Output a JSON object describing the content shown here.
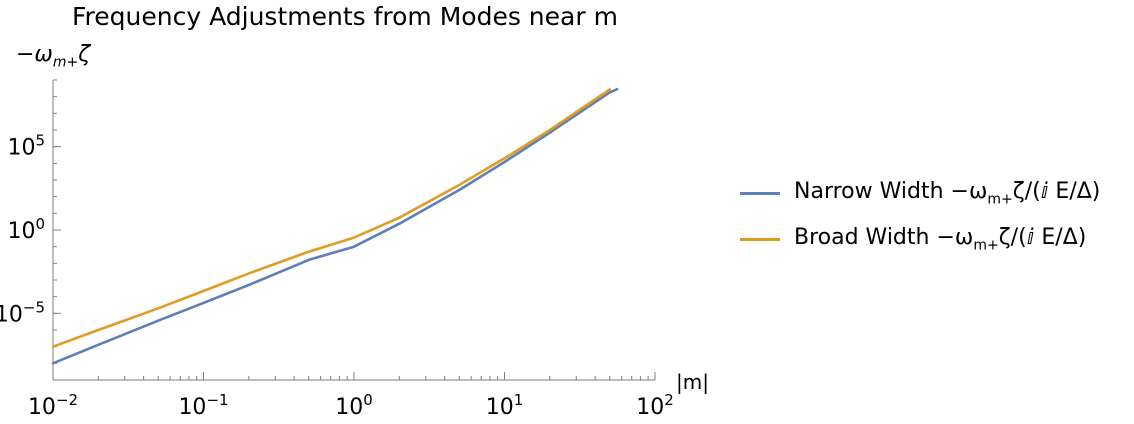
{
  "chart_data": {
    "type": "line",
    "title": "Frequency Adjustments from Modes near m",
    "xlabel": "|m|",
    "ylabel": "−ω_{m+}ζ",
    "ylabel_main": "−ω",
    "ylabel_sub": "m+",
    "ylabel_tail": "ζ",
    "x_scale": "log",
    "y_scale": "log",
    "xlim": [
      0.01,
      100
    ],
    "ylim": [
      1e-09,
      1000000000.0
    ],
    "x_ticks": [
      {
        "base": "10",
        "exp": "−2",
        "value": 0.01
      },
      {
        "base": "10",
        "exp": "−1",
        "value": 0.1
      },
      {
        "base": "10",
        "exp": "0",
        "value": 1
      },
      {
        "base": "10",
        "exp": "1",
        "value": 10
      },
      {
        "base": "10",
        "exp": "2",
        "value": 100
      }
    ],
    "y_ticks": [
      {
        "base": "10",
        "exp": "5",
        "value": 100000
      },
      {
        "base": "10",
        "exp": "0",
        "value": 1
      },
      {
        "base": "10",
        "exp": "−5",
        "value": 1e-05
      }
    ],
    "grid": false,
    "legend_position": "right",
    "series": [
      {
        "name": "Narrow Width −ω_{m+}ζ/(ⅈ E/Δ)",
        "legend_main": "Narrow Width −ω",
        "legend_sub": "m+",
        "legend_tail": "ζ/(ⅈ E/Δ)",
        "color": "#5E81B5",
        "x": [
          0.01,
          0.02,
          0.05,
          0.1,
          0.2,
          0.5,
          1,
          2,
          5,
          10,
          20,
          50,
          56
        ],
        "y": [
          1e-08,
          1.3e-07,
          3.6e-06,
          4.2e-05,
          0.0005,
          0.016,
          0.1,
          2.4,
          250.0,
          12000.0,
          700000.0,
          180000000.0,
          280000000.0
        ]
      },
      {
        "name": "Broad Width −ω_{m+}ζ/(ⅈ E/Δ)",
        "legend_main": "Broad Width −ω",
        "legend_sub": "m+",
        "legend_tail": "ζ/(ⅈ E/Δ)",
        "color": "#E19C24",
        "x": [
          0.01,
          0.02,
          0.05,
          0.1,
          0.2,
          0.5,
          1,
          2,
          5,
          10,
          20,
          50
        ],
        "y": [
          1e-07,
          1e-06,
          2e-05,
          0.00022,
          0.0025,
          0.05,
          0.35,
          5.5,
          500.0,
          20000.0,
          1000000.0,
          270000000.0
        ]
      }
    ]
  }
}
